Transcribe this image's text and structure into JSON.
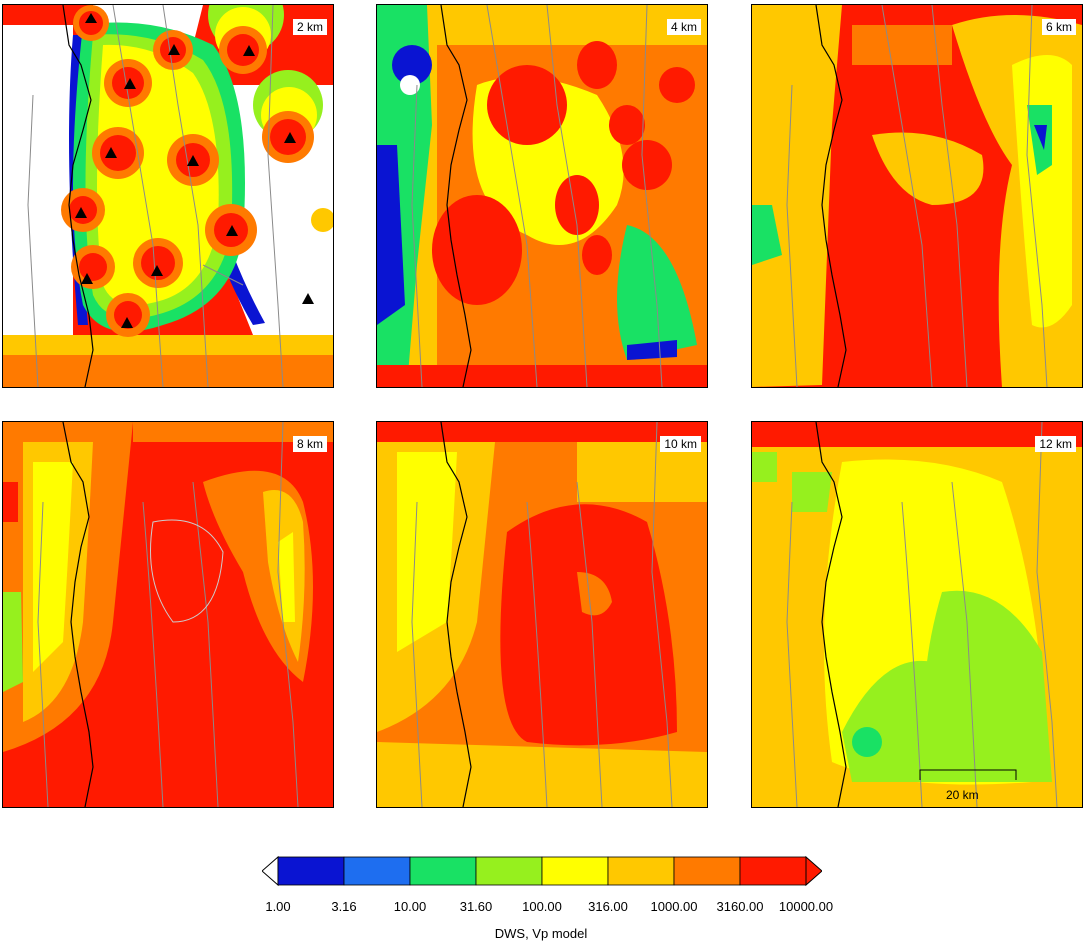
{
  "panels": [
    {
      "depth": "2 km",
      "has_stations": true,
      "has_scale_bar": false,
      "base": "#ff1a00"
    },
    {
      "depth": "4 km",
      "has_stations": false,
      "has_scale_bar": false,
      "base": "#ff7a00"
    },
    {
      "depth": "6 km",
      "has_stations": false,
      "has_scale_bar": false,
      "base": "#ff1a00"
    },
    {
      "depth": "8 km",
      "has_stations": false,
      "has_scale_bar": false,
      "base": "#ff1a00"
    },
    {
      "depth": "10 km",
      "has_stations": false,
      "has_scale_bar": false,
      "base": "#ff7a00"
    },
    {
      "depth": "12 km",
      "has_stations": false,
      "has_scale_bar": true,
      "base": "#ffc800",
      "scale_label": "20 km"
    }
  ],
  "colorbar": {
    "title": "DWS, Vp model",
    "tick_labels": [
      "1.00",
      "3.16",
      "10.00",
      "31.60",
      "100.00",
      "316.00",
      "1000.00",
      "3160.00",
      "10000.00"
    ],
    "colors": [
      "#0a14d2",
      "#1e6ef0",
      "#19e164",
      "#96f01e",
      "#ffff00",
      "#ffc800",
      "#ff7a00",
      "#ff1a00"
    ]
  }
}
